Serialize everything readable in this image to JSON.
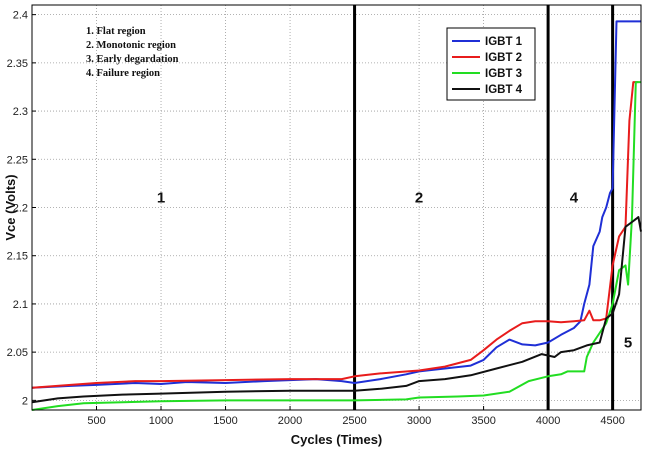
{
  "chart_data": {
    "type": "line",
    "title": "",
    "xlabel": "Cycles (Times)",
    "ylabel": "Vce (Volts)",
    "xlim": [
      0,
      4720
    ],
    "ylim": [
      1.99,
      2.41
    ],
    "xticks": [
      500,
      1000,
      1500,
      2000,
      2500,
      3000,
      3500,
      4000,
      4500
    ],
    "yticks": [
      2,
      2.05,
      2.1,
      2.15,
      2.2,
      2.25,
      2.3,
      2.35,
      2.4
    ],
    "grid": "dotted",
    "legend_position": "top-right",
    "notes": [
      "1. Flat region",
      "2. Monotonic region",
      "3. Early degardation",
      "4. Failure region"
    ],
    "region_labels": [
      {
        "text": "1",
        "x": 1000,
        "y": 2.205
      },
      {
        "text": "2",
        "x": 3000,
        "y": 2.205
      },
      {
        "text": "4",
        "x": 4200,
        "y": 2.205
      },
      {
        "text": "5",
        "x": 4620,
        "y": 2.055
      }
    ],
    "boundaries": [
      2500,
      4000,
      4500
    ],
    "series": [
      {
        "name": "IGBT 1",
        "color": "#1f2fd6",
        "points": [
          [
            0,
            2.013
          ],
          [
            300,
            2.015
          ],
          [
            500,
            2.016
          ],
          [
            800,
            2.018
          ],
          [
            1000,
            2.017
          ],
          [
            1200,
            2.019
          ],
          [
            1500,
            2.018
          ],
          [
            1800,
            2.02
          ],
          [
            2000,
            2.021
          ],
          [
            2200,
            2.022
          ],
          [
            2400,
            2.02
          ],
          [
            2500,
            2.018
          ],
          [
            2700,
            2.022
          ],
          [
            2900,
            2.027
          ],
          [
            3000,
            2.03
          ],
          [
            3200,
            2.033
          ],
          [
            3400,
            2.036
          ],
          [
            3500,
            2.042
          ],
          [
            3600,
            2.055
          ],
          [
            3700,
            2.063
          ],
          [
            3800,
            2.058
          ],
          [
            3900,
            2.057
          ],
          [
            4000,
            2.06
          ],
          [
            4100,
            2.068
          ],
          [
            4200,
            2.075
          ],
          [
            4250,
            2.082
          ],
          [
            4280,
            2.1
          ],
          [
            4320,
            2.12
          ],
          [
            4350,
            2.16
          ],
          [
            4400,
            2.175
          ],
          [
            4420,
            2.19
          ],
          [
            4450,
            2.2
          ],
          [
            4480,
            2.215
          ],
          [
            4500,
            2.22
          ],
          [
            4530,
            2.393
          ],
          [
            4600,
            2.393
          ],
          [
            4700,
            2.393
          ],
          [
            4720,
            2.393
          ]
        ]
      },
      {
        "name": "IGBT 2",
        "color": "#e81c1c",
        "points": [
          [
            0,
            2.013
          ],
          [
            300,
            2.016
          ],
          [
            500,
            2.018
          ],
          [
            800,
            2.02
          ],
          [
            1000,
            2.02
          ],
          [
            1500,
            2.021
          ],
          [
            2000,
            2.022
          ],
          [
            2400,
            2.022
          ],
          [
            2500,
            2.025
          ],
          [
            2700,
            2.028
          ],
          [
            3000,
            2.031
          ],
          [
            3200,
            2.035
          ],
          [
            3400,
            2.042
          ],
          [
            3500,
            2.052
          ],
          [
            3600,
            2.063
          ],
          [
            3700,
            2.072
          ],
          [
            3800,
            2.08
          ],
          [
            3900,
            2.082
          ],
          [
            4000,
            2.082
          ],
          [
            4100,
            2.081
          ],
          [
            4200,
            2.082
          ],
          [
            4280,
            2.083
          ],
          [
            4320,
            2.093
          ],
          [
            4350,
            2.083
          ],
          [
            4400,
            2.083
          ],
          [
            4450,
            2.085
          ],
          [
            4500,
            2.14
          ],
          [
            4550,
            2.17
          ],
          [
            4600,
            2.18
          ],
          [
            4630,
            2.29
          ],
          [
            4660,
            2.33
          ],
          [
            4700,
            2.33
          ]
        ]
      },
      {
        "name": "IGBT 3",
        "color": "#22dd22",
        "points": [
          [
            0,
            1.99
          ],
          [
            200,
            1.994
          ],
          [
            400,
            1.997
          ],
          [
            700,
            1.998
          ],
          [
            1000,
            1.999
          ],
          [
            1500,
            2.0
          ],
          [
            2000,
            2.0
          ],
          [
            2500,
            2.0
          ],
          [
            2900,
            2.001
          ],
          [
            3000,
            2.003
          ],
          [
            3300,
            2.004
          ],
          [
            3500,
            2.005
          ],
          [
            3700,
            2.009
          ],
          [
            3850,
            2.02
          ],
          [
            4000,
            2.025
          ],
          [
            4100,
            2.027
          ],
          [
            4150,
            2.03
          ],
          [
            4280,
            2.03
          ],
          [
            4300,
            2.045
          ],
          [
            4350,
            2.06
          ],
          [
            4450,
            2.08
          ],
          [
            4500,
            2.1
          ],
          [
            4550,
            2.135
          ],
          [
            4600,
            2.14
          ],
          [
            4620,
            2.12
          ],
          [
            4650,
            2.19
          ],
          [
            4680,
            2.33
          ],
          [
            4720,
            2.33
          ]
        ]
      },
      {
        "name": "IGBT 4",
        "color": "#111111",
        "points": [
          [
            0,
            1.998
          ],
          [
            200,
            2.002
          ],
          [
            400,
            2.004
          ],
          [
            700,
            2.006
          ],
          [
            1000,
            2.007
          ],
          [
            1500,
            2.009
          ],
          [
            2000,
            2.01
          ],
          [
            2400,
            2.01
          ],
          [
            2500,
            2.01
          ],
          [
            2700,
            2.012
          ],
          [
            2900,
            2.015
          ],
          [
            3000,
            2.02
          ],
          [
            3200,
            2.022
          ],
          [
            3400,
            2.026
          ],
          [
            3600,
            2.033
          ],
          [
            3800,
            2.04
          ],
          [
            3950,
            2.048
          ],
          [
            4050,
            2.045
          ],
          [
            4100,
            2.05
          ],
          [
            4200,
            2.052
          ],
          [
            4300,
            2.057
          ],
          [
            4400,
            2.06
          ],
          [
            4450,
            2.085
          ],
          [
            4500,
            2.09
          ],
          [
            4550,
            2.11
          ],
          [
            4600,
            2.18
          ],
          [
            4650,
            2.185
          ],
          [
            4700,
            2.19
          ],
          [
            4720,
            2.175
          ]
        ]
      }
    ]
  }
}
